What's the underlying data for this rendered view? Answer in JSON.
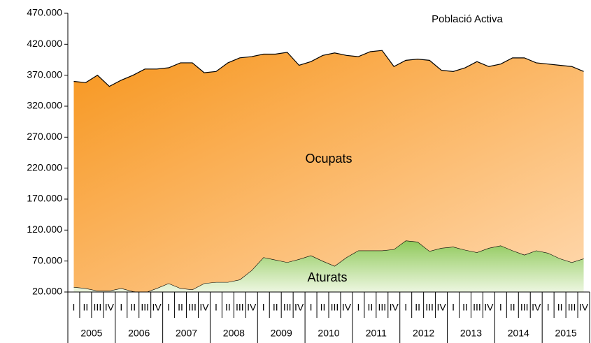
{
  "chart_data": {
    "type": "stacked_area",
    "title": "Població Activa",
    "categories": [
      "I",
      "II",
      "III",
      "IV",
      "I",
      "II",
      "III",
      "IV",
      "I",
      "II",
      "III",
      "IV",
      "I",
      "II",
      "III",
      "IV",
      "I",
      "II",
      "III",
      "IV",
      "I",
      "II",
      "III",
      "IV",
      "I",
      "II",
      "III",
      "IV",
      "I",
      "II",
      "III",
      "IV",
      "I",
      "II",
      "III",
      "IV",
      "I",
      "II",
      "III",
      "IV",
      "I",
      "II",
      "III",
      "IV"
    ],
    "years": [
      "2005",
      "2006",
      "2007",
      "2008",
      "2009",
      "2010",
      "2011",
      "2012",
      "2013",
      "2014",
      "2015"
    ],
    "series": [
      {
        "name": "Aturats",
        "color": "#8fc95a",
        "values": [
          28000,
          26000,
          22000,
          22000,
          26000,
          21000,
          19000,
          26000,
          34000,
          26000,
          24000,
          34000,
          36000,
          36000,
          40000,
          55000,
          76000,
          72000,
          68000,
          73000,
          79000,
          70000,
          62000,
          76000,
          87000,
          87000,
          87000,
          89000,
          103000,
          101000,
          86000,
          91000,
          93000,
          88000,
          84000,
          91000,
          95000,
          87000,
          80000,
          87000,
          83000,
          74000,
          68000,
          74000
        ]
      },
      {
        "name": "Ocupats",
        "color": "#f7961e",
        "values": [
          332000,
          332000,
          348000,
          330000,
          336000,
          349000,
          361000,
          354000,
          348000,
          364000,
          366000,
          340000,
          340000,
          354000,
          358000,
          345000,
          328000,
          332000,
          339000,
          313000,
          313000,
          332000,
          344000,
          326000,
          313000,
          321000,
          323000,
          295000,
          291000,
          295000,
          308000,
          287000,
          283000,
          294000,
          308000,
          293000,
          293000,
          311000,
          318000,
          303000,
          305000,
          312000,
          316000,
          302000
        ]
      }
    ],
    "ylim": [
      20000,
      470000
    ],
    "yticks": [
      {
        "value": 20000,
        "label": "20.000"
      },
      {
        "value": 70000,
        "label": "70.000"
      },
      {
        "value": 120000,
        "label": "120.000"
      },
      {
        "value": 170000,
        "label": "170.000"
      },
      {
        "value": 220000,
        "label": "220.000"
      },
      {
        "value": 270000,
        "label": "270.000"
      },
      {
        "value": 320000,
        "label": "320.000"
      },
      {
        "value": 370000,
        "label": "370.000"
      },
      {
        "value": 420000,
        "label": "420.000"
      },
      {
        "value": 470000,
        "label": "470.000"
      }
    ],
    "grid": false
  }
}
